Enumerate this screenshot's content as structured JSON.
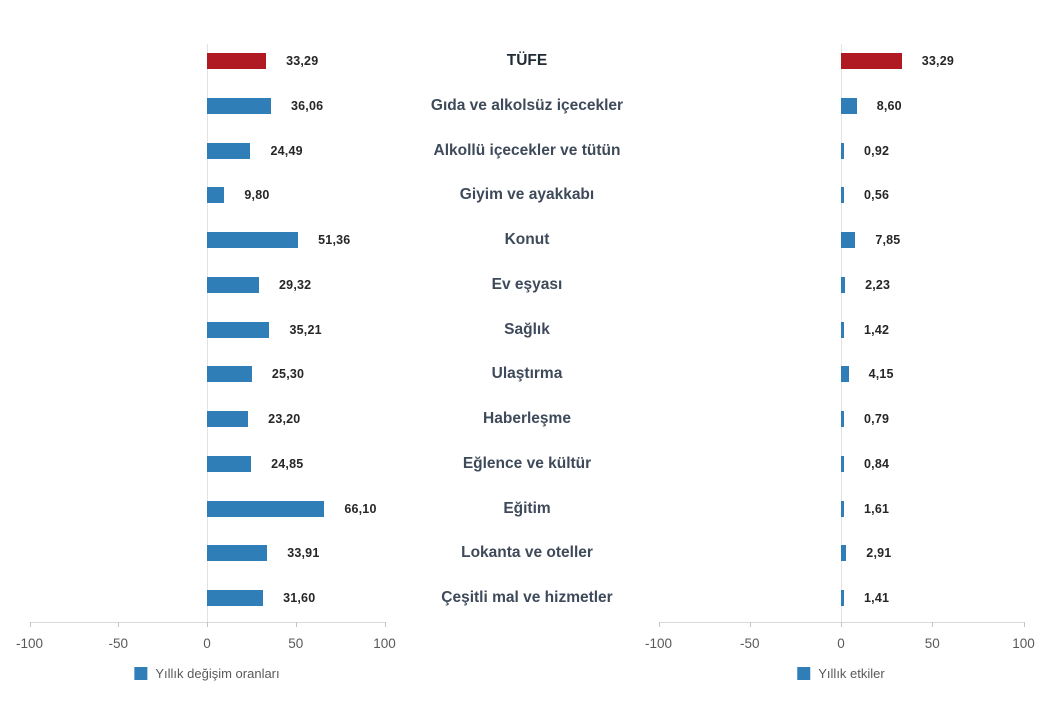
{
  "chart_data": {
    "type": "bar",
    "orientation": "horizontal",
    "layout": "tornado-two-panel",
    "categories": [
      "TÜFE",
      "Gıda ve alkolsüz içecekler",
      "Alkollü içecekler ve tütün",
      "Giyim ve ayakkabı",
      "Konut",
      "Ev eşyası",
      "Sağlık",
      "Ulaştırma",
      "Haberleşme",
      "Eğlence ve kültür",
      "Eğitim",
      "Lokanta ve oteller",
      "Çeşitli mal ve hizmetler"
    ],
    "highlight_category": "TÜFE",
    "highlight_index": 0,
    "series": [
      {
        "name": "Yıllık değişim oranları",
        "panel": "left",
        "values": [
          33.29,
          36.06,
          24.49,
          9.8,
          51.36,
          29.32,
          35.21,
          25.3,
          23.2,
          24.85,
          66.1,
          33.91,
          31.6
        ],
        "value_labels": [
          "33,29",
          "36,06",
          "24,49",
          "9,80",
          "51,36",
          "29,32",
          "35,21",
          "25,30",
          "23,20",
          "24,85",
          "66,10",
          "33,91",
          "31,60"
        ]
      },
      {
        "name": "Yıllık etkiler",
        "panel": "right",
        "values": [
          33.29,
          8.6,
          0.92,
          0.56,
          7.85,
          2.23,
          1.42,
          4.15,
          0.79,
          0.84,
          1.61,
          2.91,
          1.41
        ],
        "value_labels": [
          "33,29",
          "8,60",
          "0,92",
          "0,56",
          "7,85",
          "2,23",
          "1,42",
          "4,15",
          "0,79",
          "0,84",
          "1,61",
          "2,91",
          "1,41"
        ]
      }
    ],
    "x_axis": {
      "min": -100,
      "max": 100,
      "tick_values": [
        -100,
        -50,
        0,
        50,
        100
      ],
      "tick_labels": [
        "-100",
        "-50",
        "0",
        "50",
        "100"
      ],
      "grid": "zero-line-only"
    },
    "legend": [
      {
        "label": "Yıllık değişim oranları",
        "color": "#2F7EB8",
        "position": "bottom-left-panel"
      },
      {
        "label": "Yıllık etkiler",
        "color": "#2F7EB8",
        "position": "bottom-right-panel"
      }
    ],
    "colors": {
      "bar_blue": "#2F7EB8",
      "bar_red": "#B01B23",
      "value_label": "#262626",
      "category_label": "#3E4A5A",
      "axis_label": "#595959",
      "axis_line": "#D9D9D9",
      "background": "#FFFFFF"
    }
  }
}
